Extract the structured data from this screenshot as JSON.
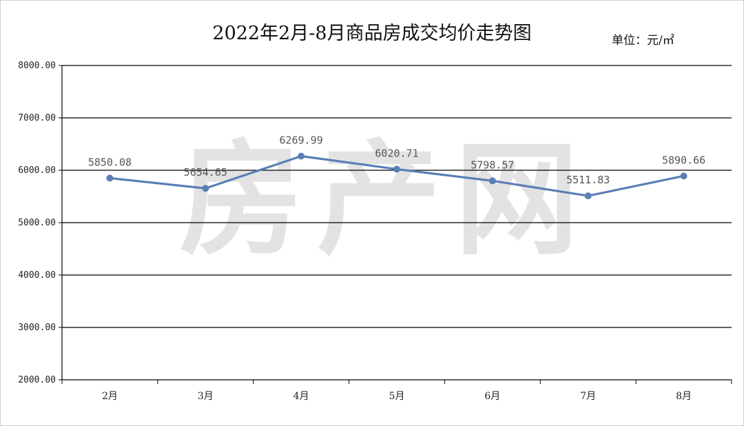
{
  "chart_data": {
    "type": "line",
    "title": "2022年2月-8月商品房成交均价走势图",
    "unit_label": "单位：元/㎡",
    "watermark": "房产网",
    "categories": [
      "2月",
      "3月",
      "4月",
      "5月",
      "6月",
      "7月",
      "8月"
    ],
    "series": [
      {
        "values": [
          5850.08,
          5654.65,
          6269.99,
          6020.71,
          5798.57,
          5511.83,
          5890.66
        ],
        "labels": [
          "5850.08",
          "5654.65",
          "6269.99",
          "6020.71",
          "5798.57",
          "5511.83",
          "5890.66"
        ],
        "color": "#5b7fb5"
      }
    ],
    "ylim": [
      2000,
      8000
    ],
    "yticks": [
      "2000.00",
      "3000.00",
      "4000.00",
      "5000.00",
      "6000.00",
      "7000.00",
      "8000.00"
    ],
    "grid": true,
    "legend": "none",
    "xlabel": "",
    "ylabel": ""
  }
}
